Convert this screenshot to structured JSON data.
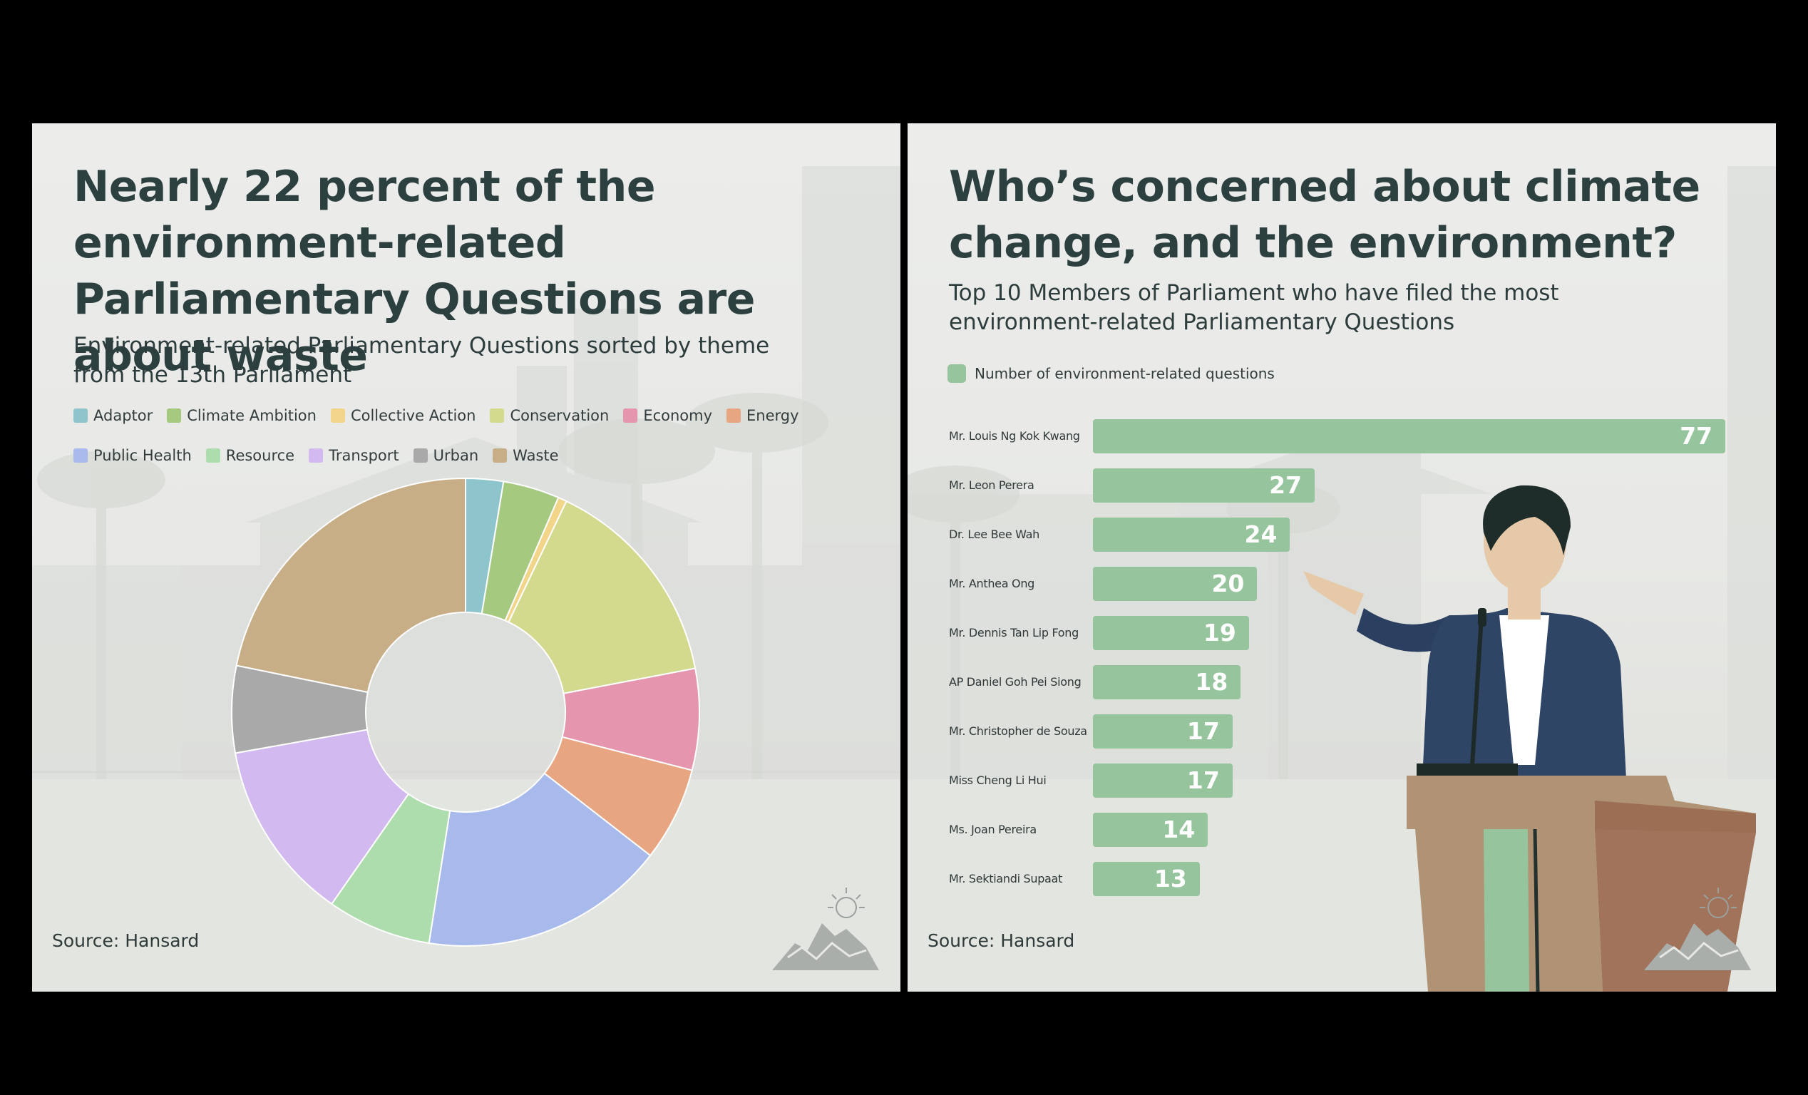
{
  "left_panel": {
    "title": "Nearly 22 percent of the environment-related Parliamentary Questions are about waste",
    "subtitle": "Environment-related Parliamentary Questions sorted by theme from the 13th Parliament",
    "source": "Source: Hansard"
  },
  "right_panel": {
    "title": "Who’s concerned about climate change, and the environment?",
    "subtitle": "Top 10 Members of Parliament who have filed the most environment-related Parliamentary Questions",
    "legend_label": "Number of environment-related questions",
    "source": "Source: Hansard"
  },
  "chart_data": [
    {
      "type": "pie",
      "donut": true,
      "title": "Nearly 22 percent of the environment-related Parliamentary Questions are about waste",
      "subtitle": "Environment-related Parliamentary Questions sorted by theme from the 13th Parliament",
      "legend_position": "top",
      "unit": "percent",
      "categories": [
        "Adaptor",
        "Climate Ambition",
        "Collective Action",
        "Conservation",
        "Economy",
        "Energy",
        "Public Health",
        "Resource",
        "Transport",
        "Urban",
        "Waste"
      ],
      "values": [
        2.6,
        3.9,
        0.6,
        14.9,
        7.0,
        6.5,
        17.0,
        7.2,
        12.5,
        6.0,
        21.8
      ],
      "colors": [
        "#8ec5cc",
        "#a5c97f",
        "#f3d58a",
        "#d3d98d",
        "#e595ae",
        "#e8a582",
        "#a8b9ec",
        "#addcad",
        "#d2b9ef",
        "#a9a9a9",
        "#c7ae87"
      ]
    },
    {
      "type": "bar",
      "orientation": "horizontal",
      "title": "Who’s concerned about climate change, and the environment?",
      "subtitle": "Top 10 Members of Parliament who have filed the most environment-related Parliamentary Questions",
      "legend_position": "top-left",
      "categories": [
        "Mr. Louis Ng Kok Kwang",
        "Mr. Leon Perera",
        "Dr. Lee Bee Wah",
        "Mr. Anthea Ong",
        "Mr. Dennis Tan Lip Fong",
        "AP Daniel Goh Pei Siong",
        "Mr. Christopher de Souza",
        "Miss Cheng Li Hui",
        "Ms. Joan Pereira",
        "Mr. Sektiandi Supaat"
      ],
      "series": [
        {
          "name": "Number of environment-related questions",
          "values": [
            77,
            27,
            24,
            20,
            19,
            18,
            17,
            17,
            14,
            13
          ],
          "color": "#96c49c"
        }
      ],
      "xlim": [
        0,
        77
      ]
    }
  ]
}
